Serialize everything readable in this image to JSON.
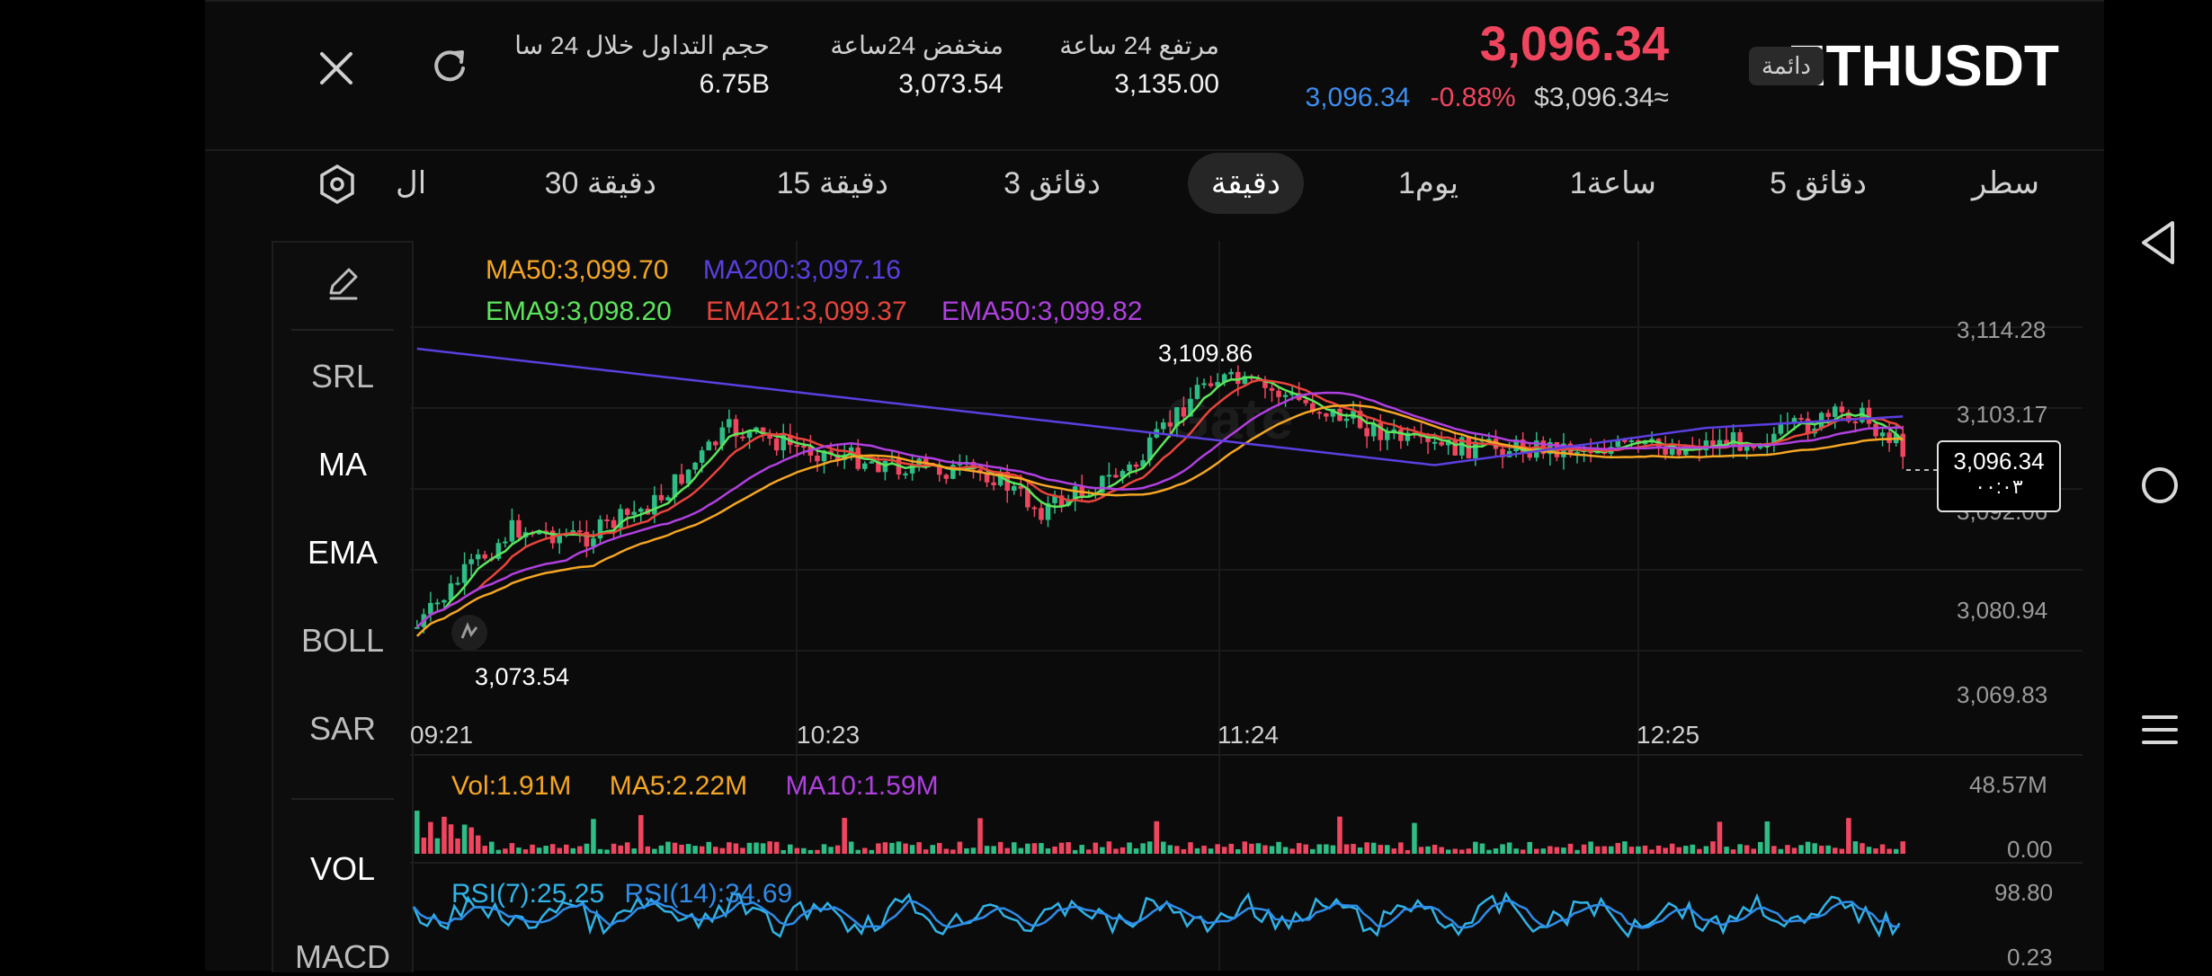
{
  "header": {
    "symbol": "ETHUSDT",
    "market_tag": "دائمة",
    "last_price": "3,096.34",
    "mark_price": "3,096.34",
    "change_pct": "-0.88%",
    "usd_value": "$3,096.34≈",
    "stats": [
      {
        "label": "مرتفع 24 ساعة",
        "value": "3,135.00"
      },
      {
        "label": "منخفض 24ساعة",
        "value": "3,073.54"
      },
      {
        "label": "حجم التداول خلال 24 سا",
        "value": "6.75B"
      }
    ]
  },
  "icons": {
    "close": "close-icon",
    "refresh": "refresh-icon",
    "settings": "hexagon-settings-icon",
    "draw": "pencil-icon"
  },
  "timeframes": [
    {
      "label": "سطر",
      "active": false
    },
    {
      "label": "5 دقائق",
      "active": false
    },
    {
      "label": "1ساعة",
      "active": false
    },
    {
      "label": "1يوم",
      "active": false
    },
    {
      "label": "دقيقة",
      "active": true
    },
    {
      "label": "3 دقائق",
      "active": false
    },
    {
      "label": "15 دقيقة",
      "active": false
    },
    {
      "label": "30 دقيقة",
      "active": false
    },
    {
      "label": "ال",
      "active": false
    }
  ],
  "side_indicators": [
    {
      "label": "SRL",
      "active": false
    },
    {
      "label": "MA",
      "active": true
    },
    {
      "label": "EMA",
      "active": true
    },
    {
      "label": "BOLL",
      "active": false
    },
    {
      "label": "SAR",
      "active": false
    },
    {
      "label": "VOL",
      "active": true
    },
    {
      "label": "MACD",
      "active": false
    }
  ],
  "legend": {
    "ma50": "MA50:3,099.70",
    "ma200": "MA200:3,097.16",
    "ema9": "EMA9:3,098.20",
    "ema21": "EMA21:3,099.37",
    "ema50": "EMA50:3,099.82"
  },
  "colors": {
    "up": "#2ebd85",
    "down": "#f0455f",
    "ma50": "#f5a623",
    "ma200": "#5b3fe0",
    "ema9": "#5ce65c",
    "ema21": "#e8453c",
    "ema50": "#b040e0",
    "rsi7": "#2fb4e8",
    "rsi14": "#2f8ce8"
  },
  "price_axis": [
    "3,114.28",
    "3,103.17",
    "3,092.06",
    "3,080.94",
    "3,069.83"
  ],
  "time_axis": [
    "09:21",
    "10:23",
    "11:24",
    "12:25"
  ],
  "annotations": {
    "high": "3,109.86",
    "low": "3,073.54",
    "current_price": "3,096.34",
    "countdown": "٠٠:٠٣"
  },
  "volume": {
    "vol": "Vol:1.91M",
    "ma5": "MA5:2.22M",
    "ma10": "MA10:1.59M",
    "axis_top": "48.57M",
    "axis_bottom": "0.00"
  },
  "rsi": {
    "rsi7": "RSI(7):25.25",
    "rsi14": "RSI(14):34.69",
    "axis_top": "98.80",
    "axis_bottom": "0.23"
  },
  "system_nav": {
    "back": "back-triangle-icon",
    "home": "home-circle-icon",
    "menu": "menu-lines-icon"
  }
}
